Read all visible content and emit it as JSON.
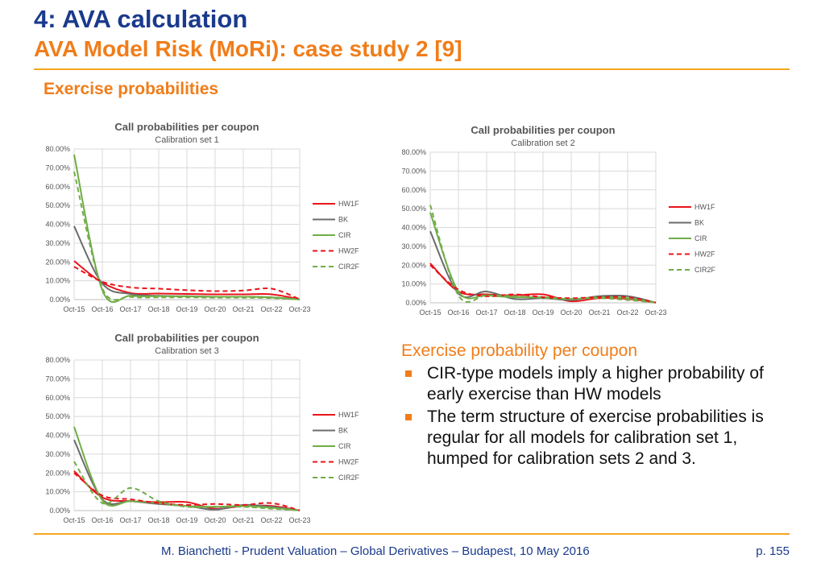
{
  "slide": {
    "title": "4: AVA calculation",
    "subtitle": "AVA Model Risk (MoRi): case study 2 [9]",
    "section": "Exercise probabilities",
    "footer": "M. Bianchetti - Prudent Valuation – Global Derivatives – Budapest, 10 May 2016",
    "page": "p. 155"
  },
  "bullets": {
    "heading": "Exercise probability per coupon",
    "items": [
      "CIR-type models imply a higher probability of early exercise than HW models",
      "The term structure of exercise probabilities is regular for all models for calibration set 1, humped for calibration sets 2 and 3."
    ]
  },
  "colors": {
    "HW1F": "#e8141b",
    "BK": "#6b6b6b",
    "CIR": "#70ad47",
    "HW2F": "#e8141b",
    "CIR2F": "#70ad47"
  },
  "chart_data": [
    {
      "type": "line",
      "title": "Call probabilities per coupon",
      "subtitle": "Calibration set 1",
      "categories": [
        "Oct-15",
        "Oct-16",
        "Oct-17",
        "Oct-18",
        "Oct-19",
        "Oct-20",
        "Oct-21",
        "Oct-22",
        "Oct-23"
      ],
      "y_ticks": [
        "0.00%",
        "10.00%",
        "20.00%",
        "30.00%",
        "40.00%",
        "50.00%",
        "60.00%",
        "70.00%",
        "80.00%"
      ],
      "ylim": [
        0,
        80
      ],
      "grid": true,
      "legend": "right",
      "series": [
        {
          "name": "HW1F",
          "dashed": false,
          "values": [
            20.5,
            9.0,
            3.5,
            3.2,
            3.0,
            2.8,
            2.8,
            2.8,
            0.2
          ]
        },
        {
          "name": "BK",
          "dashed": false,
          "values": [
            39.0,
            8.5,
            3.0,
            2.0,
            1.8,
            1.5,
            1.5,
            1.2,
            0.1
          ]
        },
        {
          "name": "CIR",
          "dashed": false,
          "values": [
            77.0,
            5.0,
            2.0,
            1.8,
            1.7,
            1.5,
            1.5,
            1.2,
            0.1
          ]
        },
        {
          "name": "HW2F",
          "dashed": true,
          "values": [
            17.5,
            9.5,
            6.5,
            5.8,
            5.0,
            4.5,
            4.8,
            5.8,
            0.2
          ]
        },
        {
          "name": "CIR2F",
          "dashed": true,
          "values": [
            68.0,
            6.0,
            1.5,
            1.2,
            1.2,
            1.0,
            1.0,
            0.8,
            0.1
          ]
        }
      ]
    },
    {
      "type": "line",
      "title": "Call probabilities per coupon",
      "subtitle": "Calibration set 2",
      "categories": [
        "Oct-15",
        "Oct-16",
        "Oct-17",
        "Oct-18",
        "Oct-19",
        "Oct-20",
        "Oct-21",
        "Oct-22",
        "Oct-23"
      ],
      "y_ticks": [
        "0.00%",
        "10.00%",
        "20.00%",
        "30.00%",
        "40.00%",
        "50.00%",
        "60.00%",
        "70.00%",
        "80.00%"
      ],
      "ylim": [
        0,
        80
      ],
      "grid": true,
      "legend": "right",
      "series": [
        {
          "name": "HW1F",
          "dashed": false,
          "values": [
            21.0,
            6.0,
            4.5,
            4.0,
            4.5,
            0.8,
            2.5,
            2.0,
            0.1
          ]
        },
        {
          "name": "BK",
          "dashed": false,
          "values": [
            38.0,
            5.0,
            6.0,
            2.0,
            2.5,
            1.5,
            3.5,
            3.5,
            0.1
          ]
        },
        {
          "name": "CIR",
          "dashed": false,
          "values": [
            48.0,
            6.0,
            4.0,
            3.0,
            3.0,
            2.0,
            3.0,
            2.5,
            0.1
          ]
        },
        {
          "name": "HW2F",
          "dashed": true,
          "values": [
            20.0,
            7.0,
            3.5,
            4.5,
            3.0,
            2.5,
            3.0,
            3.0,
            0.1
          ]
        },
        {
          "name": "CIR2F",
          "dashed": true,
          "values": [
            52.0,
            4.0,
            4.0,
            3.5,
            2.5,
            2.0,
            2.5,
            1.5,
            0.1
          ]
        }
      ]
    },
    {
      "type": "line",
      "title": "Call probabilities per coupon",
      "subtitle": "Calibration set 3",
      "categories": [
        "Oct-15",
        "Oct-16",
        "Oct-17",
        "Oct-18",
        "Oct-19",
        "Oct-20",
        "Oct-21",
        "Oct-22",
        "Oct-23"
      ],
      "y_ticks": [
        "0.00%",
        "10.00%",
        "20.00%",
        "30.00%",
        "40.00%",
        "50.00%",
        "60.00%",
        "70.00%",
        "80.00%"
      ],
      "ylim": [
        0,
        80
      ],
      "grid": true,
      "legend": "right",
      "series": [
        {
          "name": "HW1F",
          "dashed": false,
          "values": [
            21.0,
            7.0,
            5.0,
            4.5,
            4.5,
            1.0,
            2.5,
            2.5,
            0.1
          ]
        },
        {
          "name": "BK",
          "dashed": false,
          "values": [
            37.5,
            6.0,
            5.0,
            3.5,
            2.5,
            0.5,
            3.0,
            2.0,
            0.1
          ]
        },
        {
          "name": "CIR",
          "dashed": false,
          "values": [
            44.5,
            5.5,
            5.0,
            4.0,
            2.5,
            2.0,
            2.5,
            1.5,
            0.1
          ]
        },
        {
          "name": "HW2F",
          "dashed": true,
          "values": [
            20.0,
            8.0,
            6.0,
            4.0,
            3.0,
            3.5,
            3.0,
            4.0,
            0.1
          ]
        },
        {
          "name": "CIR2F",
          "dashed": true,
          "values": [
            26.0,
            4.0,
            12.0,
            5.0,
            2.0,
            2.0,
            2.0,
            1.0,
            0.1
          ]
        }
      ]
    }
  ]
}
